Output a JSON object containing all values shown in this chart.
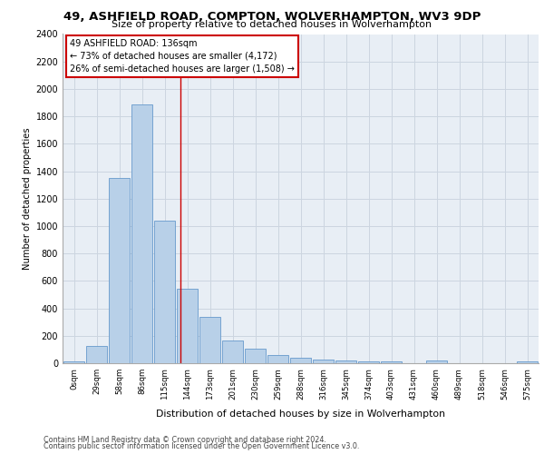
{
  "title_line1": "49, ASHFIELD ROAD, COMPTON, WOLVERHAMPTON, WV3 9DP",
  "title_line2": "Size of property relative to detached houses in Wolverhampton",
  "xlabel": "Distribution of detached houses by size in Wolverhampton",
  "ylabel": "Number of detached properties",
  "bar_color": "#b8d0e8",
  "bar_edge_color": "#6699cc",
  "categories": [
    "0sqm",
    "29sqm",
    "58sqm",
    "86sqm",
    "115sqm",
    "144sqm",
    "173sqm",
    "201sqm",
    "230sqm",
    "259sqm",
    "288sqm",
    "316sqm",
    "345sqm",
    "374sqm",
    "403sqm",
    "431sqm",
    "460sqm",
    "489sqm",
    "518sqm",
    "546sqm",
    "575sqm"
  ],
  "values": [
    15,
    125,
    1350,
    1890,
    1040,
    540,
    335,
    165,
    105,
    60,
    38,
    28,
    22,
    15,
    10,
    0,
    18,
    0,
    0,
    0,
    15
  ],
  "ylim": [
    0,
    2400
  ],
  "yticks": [
    0,
    200,
    400,
    600,
    800,
    1000,
    1200,
    1400,
    1600,
    1800,
    2000,
    2200,
    2400
  ],
  "property_line_bin": 4.68,
  "annotation_title": "49 ASHFIELD ROAD: 136sqm",
  "annotation_line1": "← 73% of detached houses are smaller (4,172)",
  "annotation_line2": "26% of semi-detached houses are larger (1,508) →",
  "annotation_box_color": "#ffffff",
  "annotation_box_edge_color": "#cc0000",
  "vline_color": "#cc0000",
  "grid_color": "#ccd5e0",
  "background_color": "#e8eef5",
  "footer_line1": "Contains HM Land Registry data © Crown copyright and database right 2024.",
  "footer_line2": "Contains public sector information licensed under the Open Government Licence v3.0."
}
